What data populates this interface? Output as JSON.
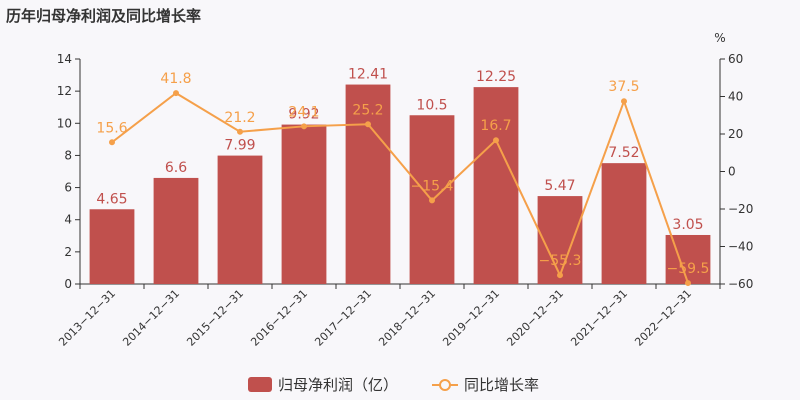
{
  "chart_data": {
    "type": "bar",
    "title": "历年归母净利润及同比增长率",
    "categories": [
      "2013-12-31",
      "2014-12-31",
      "2015-12-31",
      "2016-12-31",
      "2017-12-31",
      "2018-12-31",
      "2019-12-31",
      "2020-12-31",
      "2021-12-31",
      "2022-12-31"
    ],
    "series": [
      {
        "name": "归母净利润（亿）",
        "type": "bar",
        "axis": "left",
        "values": [
          4.65,
          6.6,
          7.99,
          9.92,
          12.41,
          10.5,
          12.25,
          5.47,
          7.52,
          3.05
        ],
        "labels": [
          "4.65",
          "6.6",
          "7.99",
          "9.92",
          "12.41",
          "10.5",
          "12.25",
          "5.47",
          "7.52",
          "3.05"
        ],
        "color": "#c0504d"
      },
      {
        "name": "同比增长率",
        "type": "line",
        "axis": "right",
        "values": [
          15.6,
          41.8,
          21.2,
          24.1,
          25.2,
          -15.4,
          16.7,
          -55.3,
          37.5,
          -59.5
        ],
        "labels": [
          "15.6",
          "41.8",
          "21.2",
          "24.1",
          "25.2",
          "-15.4",
          "16.7",
          "-55.3",
          "37.5",
          "-59.5"
        ],
        "color": "#f5a04a"
      }
    ],
    "y_left": {
      "lim": [
        0,
        14
      ],
      "ticks": [
        0,
        2,
        4,
        6,
        8,
        10,
        12,
        14
      ]
    },
    "y_right": {
      "lim": [
        -60,
        60
      ],
      "ticks": [
        -60,
        -40,
        -20,
        0,
        20,
        40,
        60
      ],
      "unit": "%"
    },
    "legend": "bottom-center",
    "grid": false
  }
}
